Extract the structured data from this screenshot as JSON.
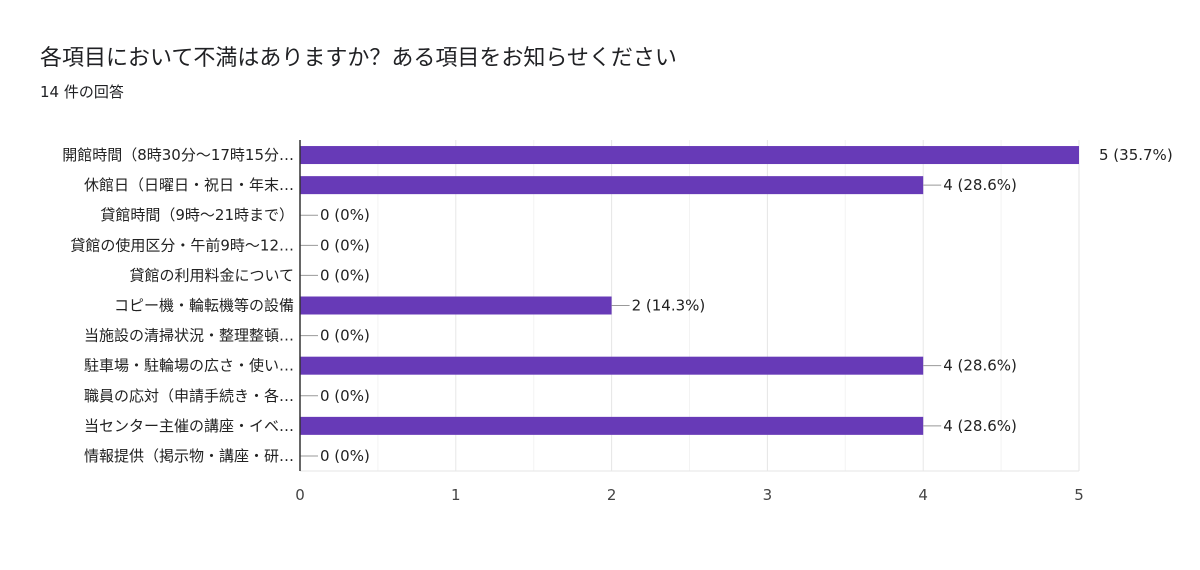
{
  "title": "各項目において不満はありますか？ある項目をお知らせください",
  "subtitle": "14 件の回答",
  "chart_data": {
    "type": "bar",
    "orientation": "horizontal",
    "categories": [
      "開館時間（8時30分〜17時15分…",
      "休館日（日曜日・祝日・年末…",
      "貸館時間（9時〜21時まで）",
      "貸館の使用区分・午前9時〜12…",
      "貸館の利用料金について",
      "コピー機・輪転機等の設備",
      "当施設の清掃状況・整理整頓…",
      "駐車場・駐輪場の広さ・使い…",
      "職員の応対（申請手続き・各…",
      "当センター主催の講座・イベ…",
      "情報提供（掲示物・講座・研…"
    ],
    "values": [
      5,
      4,
      0,
      0,
      0,
      2,
      0,
      4,
      0,
      4,
      0
    ],
    "data_labels": [
      "5 (35.7%)",
      "4 (28.6%)",
      "0 (0%)",
      "0 (0%)",
      "0 (0%)",
      "2 (14.3%)",
      "0 (0%)",
      "4 (28.6%)",
      "0 (0%)",
      "4 (28.6%)",
      "0 (0%)"
    ],
    "xlim": [
      0,
      5
    ],
    "xticks": [
      "0",
      "1",
      "2",
      "3",
      "4",
      "5"
    ],
    "grid": true,
    "bar_color": "#673ab7"
  }
}
